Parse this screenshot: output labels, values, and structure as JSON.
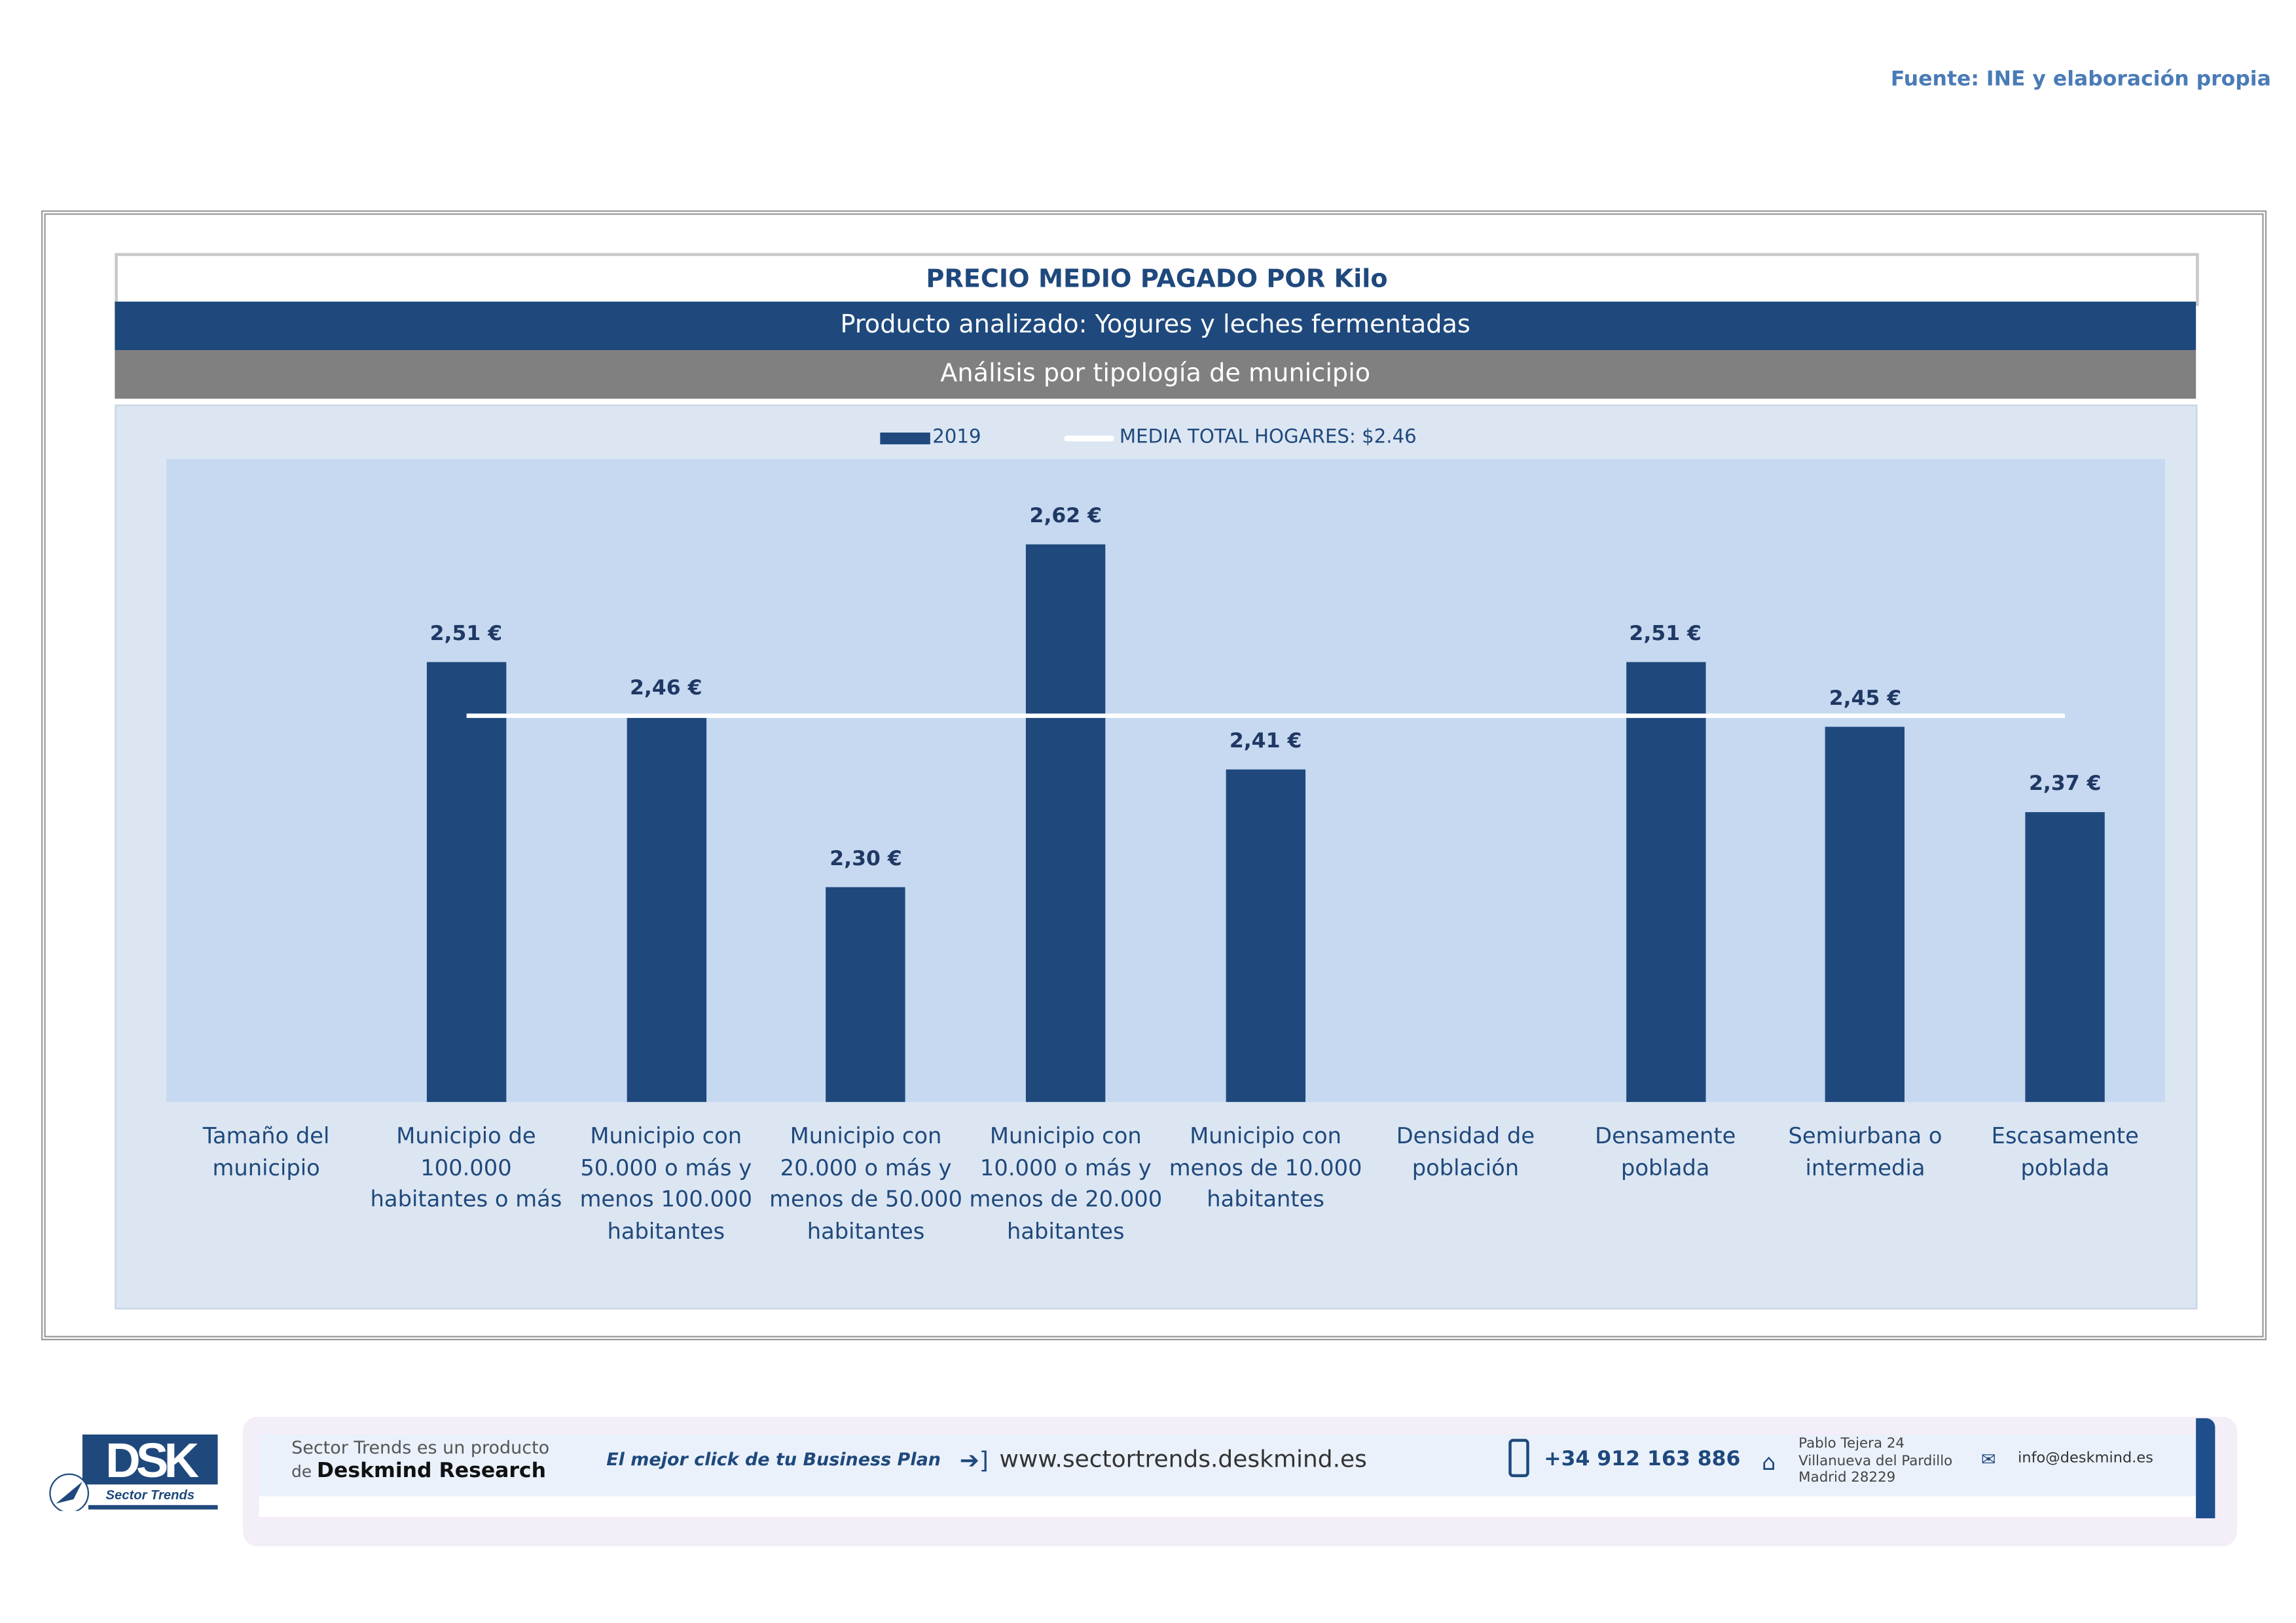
{
  "source_note": "Fuente: INE y elaboración propia",
  "header": {
    "title": "PRECIO MEDIO PAGADO POR Kilo",
    "product": "Producto analizado: Yogures y leches fermentadas",
    "analysis": "Análisis por tipología de municipio"
  },
  "colors": {
    "bar": "#1f497d",
    "plot_bg": "#c6d9f0",
    "chart_bg": "#dce6f2",
    "mean_line": "#ffffff"
  },
  "chart_data": {
    "type": "bar",
    "categories": [
      [
        "Tamaño del",
        "municipio"
      ],
      [
        "Municipio de",
        "100.000",
        "habitantes o más"
      ],
      [
        "Municipio con",
        "50.000 o más y",
        "menos 100.000",
        "habitantes"
      ],
      [
        "Municipio con",
        "20.000 o más y",
        "menos de 50.000",
        "habitantes"
      ],
      [
        "Municipio con",
        "10.000 o más y",
        "menos de 20.000",
        "habitantes"
      ],
      [
        "Municipio con",
        "menos de 10.000",
        "habitantes"
      ],
      [
        "Densidad de",
        "población"
      ],
      [
        "Densamente",
        "poblada"
      ],
      [
        "Semiurbana o",
        "intermedia"
      ],
      [
        "Escasamente",
        "poblada"
      ]
    ],
    "series": [
      {
        "name": "2019",
        "values": [
          null,
          2.51,
          2.46,
          2.3,
          2.62,
          2.41,
          null,
          2.51,
          2.45,
          2.37
        ],
        "labels": [
          "",
          "2,51 €",
          "2,46 €",
          "2,30 €",
          "2,62 €",
          "2,41 €",
          "",
          "2,51 €",
          "2,45 €",
          "2,37 €"
        ]
      }
    ],
    "mean_line": {
      "name": "MEDIA TOTAL  HOGARES:  $2.46",
      "value": 2.46
    },
    "legend": {
      "series_label": "2019",
      "line_label": "MEDIA TOTAL  HOGARES:  $2.46",
      "position": "top"
    },
    "ylim": [
      2.1,
      2.7
    ],
    "grid": false
  },
  "footer": {
    "logo_text": "DSK",
    "logo_sub": "Sector Trends",
    "product_line1": "Sector Trends es un producto",
    "product_de": "de",
    "product_company": "Deskmind Research",
    "slogan": "El mejor click de tu Business Plan",
    "website": "www.sectortrends.deskmind.es",
    "phone": "+34 912 163 886",
    "address": [
      "Pablo Tejera 24",
      "Villanueva del Pardillo",
      "Madrid 28229"
    ],
    "email": "info@deskmind.es"
  }
}
